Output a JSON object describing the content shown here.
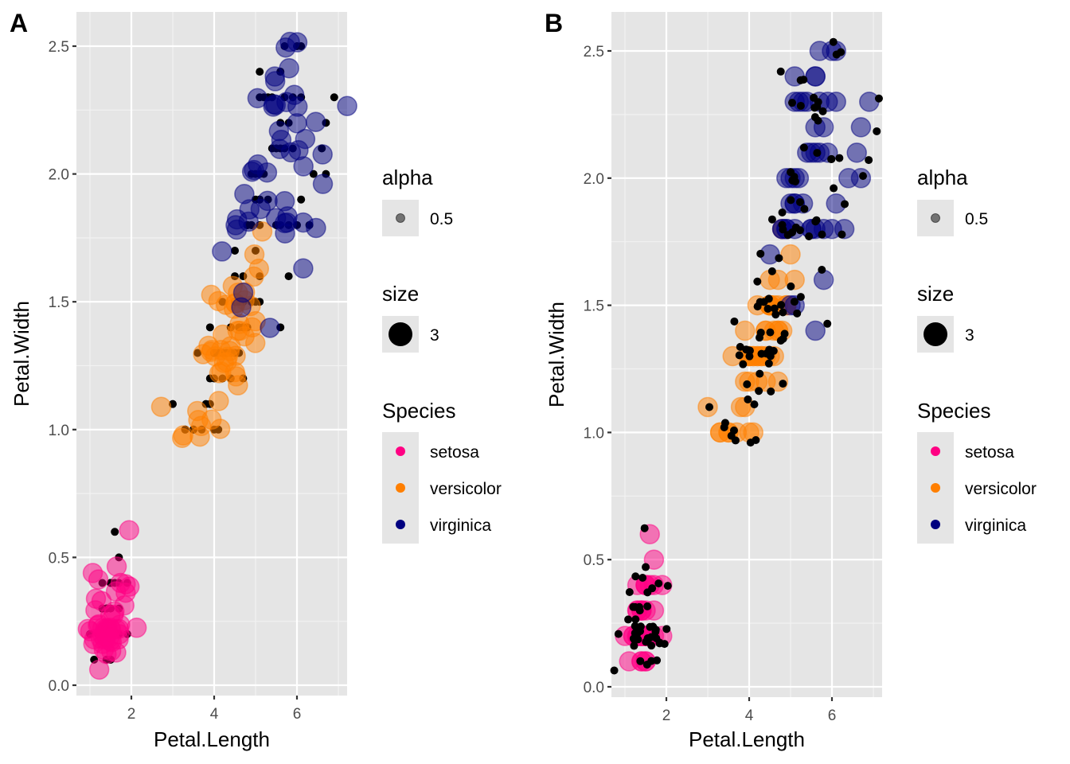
{
  "figure": {
    "panels": [
      "A",
      "B"
    ]
  },
  "legend": {
    "alpha": {
      "title": "alpha",
      "label": "0.5"
    },
    "size": {
      "title": "size",
      "label": "3"
    },
    "species": {
      "title": "Species",
      "items": [
        {
          "label": "setosa",
          "color": "#FF0083"
        },
        {
          "label": "versicolor",
          "color": "#FF7F00"
        },
        {
          "label": "virginica",
          "color": "#000080"
        }
      ]
    }
  },
  "chart_data": [
    {
      "type": "scatter",
      "panel_tag": "A",
      "title": "",
      "xlabel": "Petal.Length",
      "ylabel": "Petal.Width",
      "xlim": [
        0.7,
        7.2
      ],
      "ylim": [
        -0.04,
        2.64
      ],
      "xticks": [
        "2",
        "4",
        "6"
      ],
      "xtick_values": [
        2,
        4,
        6
      ],
      "yticks": [
        "0.0",
        "0.5",
        "1.0",
        "1.5",
        "2.0",
        "2.5"
      ],
      "ytick_values": [
        0,
        0.5,
        1.0,
        1.5,
        2.0,
        2.5
      ],
      "grid": true,
      "legend_position": "right",
      "layers": [
        {
          "name": "colored large points",
          "jittered": true,
          "alpha": 0.5,
          "size": 3,
          "color_by": "Species"
        },
        {
          "name": "black points",
          "jittered": false,
          "color": "#000000"
        }
      ]
    },
    {
      "type": "scatter",
      "panel_tag": "B",
      "title": "",
      "xlabel": "Petal.Length",
      "ylabel": "Petal.Width",
      "xlim": [
        0.7,
        7.2
      ],
      "ylim": [
        -0.04,
        2.64
      ],
      "xticks": [
        "2",
        "4",
        "6"
      ],
      "xtick_values": [
        2,
        4,
        6
      ],
      "yticks": [
        "0.0",
        "0.5",
        "1.0",
        "1.5",
        "2.0",
        "2.5"
      ],
      "ytick_values": [
        0,
        0.5,
        1.0,
        1.5,
        2.0,
        2.5
      ],
      "grid": true,
      "legend_position": "right",
      "layers": [
        {
          "name": "colored large points",
          "jittered": false,
          "alpha": 0.5,
          "size": 3,
          "color_by": "Species"
        },
        {
          "name": "black points",
          "jittered": true,
          "color": "#000000"
        }
      ]
    }
  ],
  "points": {
    "setosa": {
      "x": [
        1.4,
        1.4,
        1.3,
        1.5,
        1.4,
        1.7,
        1.4,
        1.5,
        1.4,
        1.5,
        1.5,
        1.6,
        1.4,
        1.1,
        1.2,
        1.5,
        1.3,
        1.4,
        1.7,
        1.5,
        1.7,
        1.5,
        1.0,
        1.7,
        1.9,
        1.6,
        1.6,
        1.5,
        1.4,
        1.6,
        1.6,
        1.5,
        1.5,
        1.4,
        1.5,
        1.2,
        1.3,
        1.4,
        1.3,
        1.5,
        1.3,
        1.3,
        1.3,
        1.6,
        1.9,
        1.4,
        1.6,
        1.4,
        1.5,
        1.4
      ],
      "y": [
        0.2,
        0.2,
        0.2,
        0.2,
        0.2,
        0.4,
        0.3,
        0.2,
        0.2,
        0.1,
        0.2,
        0.2,
        0.1,
        0.1,
        0.2,
        0.4,
        0.4,
        0.3,
        0.3,
        0.3,
        0.2,
        0.4,
        0.2,
        0.5,
        0.2,
        0.2,
        0.4,
        0.2,
        0.2,
        0.2,
        0.2,
        0.4,
        0.1,
        0.2,
        0.2,
        0.2,
        0.2,
        0.1,
        0.2,
        0.2,
        0.3,
        0.3,
        0.2,
        0.6,
        0.4,
        0.3,
        0.2,
        0.2,
        0.2,
        0.2
      ]
    },
    "versicolor": {
      "x": [
        4.7,
        4.5,
        4.9,
        4.0,
        4.6,
        4.5,
        4.7,
        3.3,
        4.6,
        3.9,
        3.5,
        4.2,
        4.0,
        4.7,
        3.6,
        4.4,
        4.5,
        4.1,
        4.5,
        3.9,
        4.8,
        4.0,
        4.9,
        4.7,
        4.3,
        4.4,
        4.8,
        5.0,
        4.5,
        3.5,
        3.8,
        3.7,
        3.9,
        5.1,
        4.5,
        4.5,
        4.7,
        4.4,
        4.1,
        4.0,
        4.4,
        4.6,
        4.0,
        3.3,
        4.2,
        4.2,
        4.2,
        4.3,
        3.0,
        4.1
      ],
      "y": [
        1.4,
        1.5,
        1.5,
        1.3,
        1.5,
        1.3,
        1.6,
        1.0,
        1.3,
        1.4,
        1.0,
        1.5,
        1.0,
        1.4,
        1.3,
        1.4,
        1.5,
        1.0,
        1.5,
        1.1,
        1.8,
        1.3,
        1.5,
        1.2,
        1.3,
        1.4,
        1.4,
        1.7,
        1.5,
        1.0,
        1.1,
        1.0,
        1.2,
        1.6,
        1.5,
        1.6,
        1.5,
        1.3,
        1.3,
        1.3,
        1.2,
        1.4,
        1.2,
        1.0,
        1.3,
        1.2,
        1.3,
        1.3,
        1.1,
        1.3
      ]
    },
    "virginica": {
      "x": [
        6.0,
        5.1,
        5.9,
        5.6,
        5.8,
        6.6,
        4.5,
        6.3,
        5.8,
        6.1,
        5.1,
        5.3,
        5.5,
        5.0,
        5.1,
        5.3,
        5.5,
        6.7,
        6.9,
        5.0,
        5.7,
        4.9,
        6.7,
        4.9,
        5.7,
        6.0,
        4.8,
        4.9,
        5.6,
        5.8,
        6.1,
        6.4,
        5.6,
        5.1,
        5.6,
        6.1,
        5.6,
        5.5,
        4.8,
        5.4,
        5.6,
        5.1,
        5.1,
        5.9,
        5.7,
        5.2,
        5.0,
        5.2,
        5.4,
        5.1
      ],
      "y": [
        2.5,
        1.9,
        2.1,
        1.8,
        2.2,
        2.1,
        1.7,
        1.8,
        1.8,
        2.5,
        2.0,
        1.9,
        2.1,
        2.0,
        2.4,
        2.3,
        1.8,
        2.2,
        2.3,
        1.5,
        2.3,
        2.0,
        2.0,
        1.8,
        2.1,
        1.8,
        1.8,
        1.8,
        2.1,
        1.6,
        1.9,
        2.0,
        2.2,
        1.5,
        1.4,
        2.3,
        2.4,
        1.8,
        1.8,
        2.1,
        2.4,
        2.3,
        1.9,
        2.3,
        2.5,
        2.3,
        1.9,
        2.0,
        2.3,
        1.8
      ]
    }
  }
}
